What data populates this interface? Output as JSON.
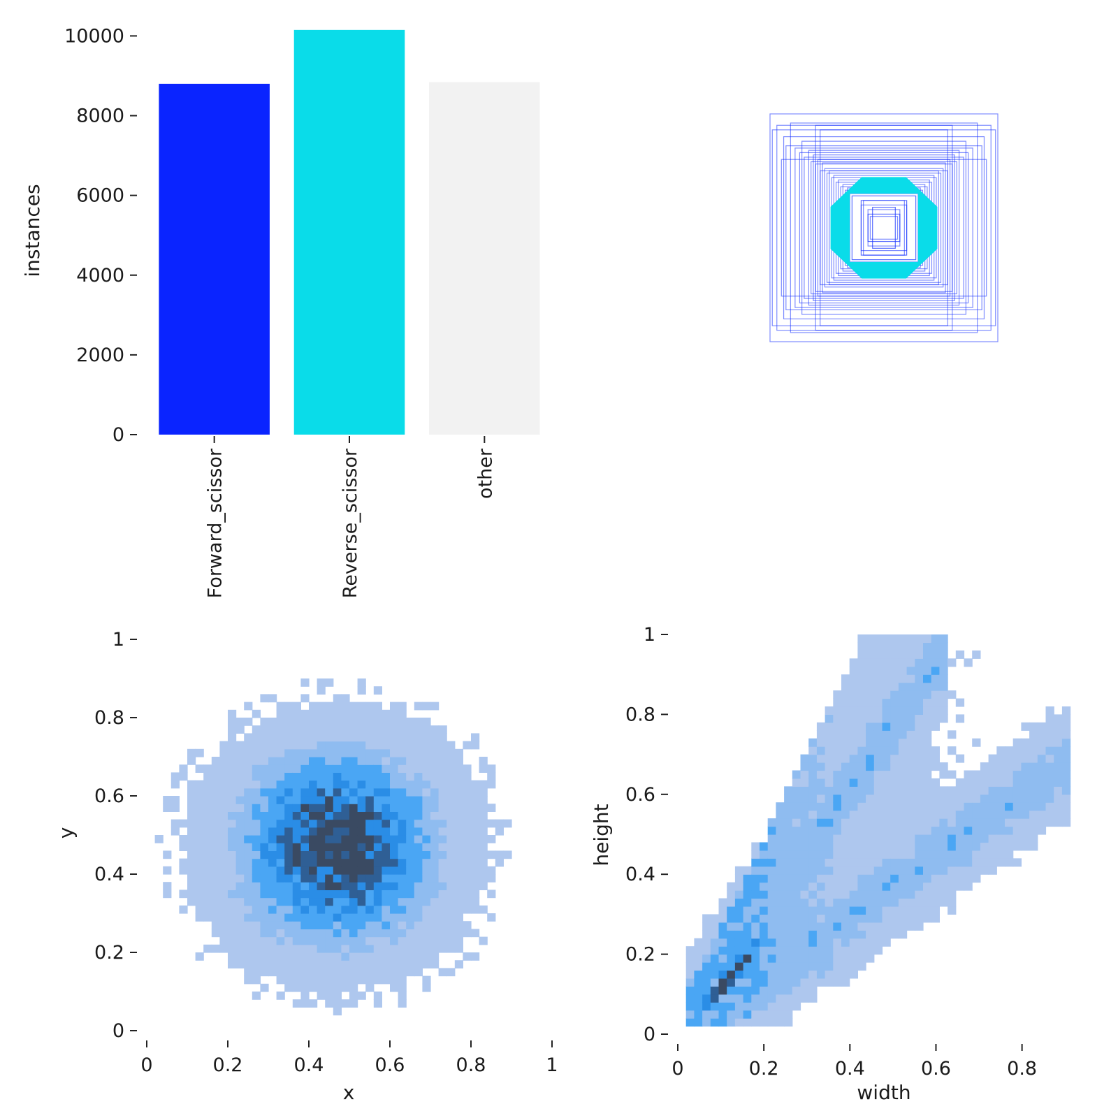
{
  "chart_data": [
    {
      "type": "bar",
      "categories": [
        "Forward_scissor",
        "Reverse_scissor",
        "other"
      ],
      "values": [
        8800,
        10150,
        8840
      ],
      "colors": [
        "#0a24ff",
        "#0adce9",
        "#f2f2f2"
      ],
      "ylabel": "instances",
      "xlabel": "",
      "ylim": [
        0,
        10200
      ],
      "yticks": [
        0,
        2000,
        4000,
        6000,
        8000,
        10000
      ],
      "grid": false,
      "legend": "none"
    },
    {
      "type": "scatter",
      "description_kind": "bounding-box-overlay",
      "center": [
        0.5,
        0.5
      ],
      "box_outline_color": "#1430ff",
      "highlight_color": "#0adce9",
      "boxes_wh": [
        [
          1.0,
          1.0
        ],
        [
          0.98,
          0.86
        ],
        [
          0.94,
          0.9
        ],
        [
          0.88,
          0.8
        ],
        [
          0.86,
          0.72
        ],
        [
          0.82,
          0.92
        ],
        [
          0.78,
          0.7
        ],
        [
          0.74,
          0.66
        ],
        [
          0.72,
          0.76
        ],
        [
          0.7,
          0.62
        ],
        [
          0.66,
          0.68
        ],
        [
          0.64,
          0.58
        ],
        [
          0.62,
          0.64
        ],
        [
          0.6,
          0.56
        ],
        [
          0.58,
          0.6
        ],
        [
          0.56,
          0.5
        ],
        [
          0.54,
          0.57
        ],
        [
          0.52,
          0.52
        ],
        [
          0.56,
          0.86
        ],
        [
          0.9,
          0.6
        ],
        [
          0.6,
          0.9
        ],
        [
          0.5,
          0.48
        ],
        [
          0.48,
          0.5
        ],
        [
          0.46,
          0.44
        ],
        [
          0.44,
          0.46
        ],
        [
          0.42,
          0.4
        ],
        [
          0.4,
          0.42
        ],
        [
          0.38,
          0.36
        ],
        [
          0.36,
          0.38
        ],
        [
          0.34,
          0.33
        ],
        [
          0.32,
          0.35
        ],
        [
          0.3,
          0.3
        ],
        [
          0.2,
          0.2
        ],
        [
          0.18,
          0.24
        ],
        [
          0.14,
          0.16
        ],
        [
          0.12,
          0.1
        ]
      ],
      "axes_visible": false
    },
    {
      "type": "heatmap",
      "xlabel": "x",
      "ylabel": "y",
      "xlim": [
        0,
        1
      ],
      "ylim": [
        0,
        1
      ],
      "xticks": [
        0.0,
        0.2,
        0.4,
        0.6,
        0.8,
        1.0
      ],
      "yticks": [
        0.0,
        0.2,
        0.4,
        0.6,
        0.8,
        1.0
      ],
      "bins": 50,
      "distribution": {
        "kind": "gaussian",
        "mean": [
          0.47,
          0.47
        ],
        "sd": [
          0.15,
          0.15
        ],
        "count": 27790
      },
      "palette": [
        "#aec7ee",
        "#8fbcf0",
        "#4aa6f4",
        "#2a8de6",
        "#2f5f95",
        "#3a4a62"
      ]
    },
    {
      "type": "heatmap",
      "xlabel": "width",
      "ylabel": "height",
      "xlim": [
        0,
        0.95
      ],
      "ylim": [
        0,
        1
      ],
      "xticks": [
        0.0,
        0.2,
        0.4,
        0.6,
        0.8
      ],
      "yticks": [
        0.0,
        0.2,
        0.4,
        0.6,
        0.8,
        1.0
      ],
      "bins": 50,
      "distribution": {
        "kind": "diagonal-band",
        "slope": 1.2,
        "core_range": [
          0.03,
          0.3
        ],
        "count": 27790
      },
      "palette": [
        "#aec7ee",
        "#8fbcf0",
        "#4aa6f4",
        "#2a8de6",
        "#2f5f95",
        "#3a4a62"
      ]
    }
  ]
}
